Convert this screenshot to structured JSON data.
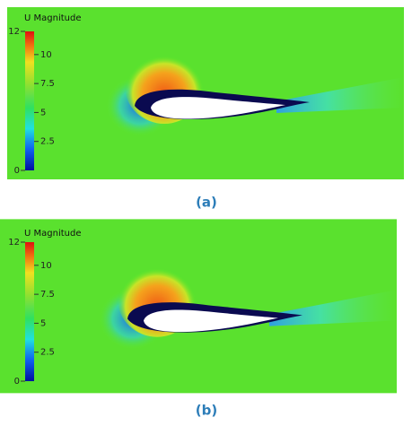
{
  "panels": [
    {
      "colorbar": {
        "title": "U Magnitude",
        "range": [
          0,
          12
        ],
        "ticks": [
          0,
          2.5,
          5,
          7.5,
          10,
          12
        ]
      },
      "caption": "(a)"
    },
    {
      "colorbar": {
        "title": "U Magnitude",
        "range": [
          0,
          12
        ],
        "ticks": [
          0,
          2.5,
          5,
          7.5,
          10,
          12
        ]
      },
      "caption": "(b)"
    }
  ]
}
